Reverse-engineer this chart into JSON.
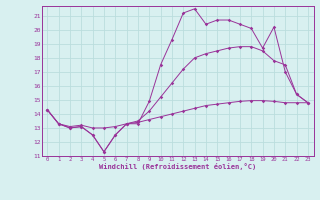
{
  "xlabel": "Windchill (Refroidissement éolien,°C)",
  "bg_color": "#d8f0f0",
  "line_color": "#993399",
  "grid_color": "#bbdddd",
  "xlim": [
    -0.5,
    23.5
  ],
  "ylim": [
    11,
    21.7
  ],
  "xticks": [
    0,
    1,
    2,
    3,
    4,
    5,
    6,
    7,
    8,
    9,
    10,
    11,
    12,
    13,
    14,
    15,
    16,
    17,
    18,
    19,
    20,
    21,
    22,
    23
  ],
  "yticks": [
    11,
    12,
    13,
    14,
    15,
    16,
    17,
    18,
    19,
    20,
    21
  ],
  "line1_x": [
    0,
    1,
    2,
    3,
    4,
    5,
    6,
    7,
    8,
    9,
    10,
    11,
    12,
    13,
    14,
    15,
    16,
    17,
    18,
    19,
    20,
    21,
    22,
    23
  ],
  "line1_y": [
    14.3,
    13.3,
    13.0,
    13.1,
    12.5,
    11.3,
    12.5,
    13.3,
    13.3,
    14.9,
    17.5,
    19.3,
    21.2,
    21.5,
    20.4,
    20.7,
    20.7,
    20.4,
    20.1,
    18.7,
    20.2,
    17.0,
    15.4,
    14.8
  ],
  "line2_x": [
    0,
    1,
    2,
    3,
    4,
    5,
    6,
    7,
    8,
    9,
    10,
    11,
    12,
    13,
    14,
    15,
    16,
    17,
    18,
    19,
    20,
    21,
    22,
    23
  ],
  "line2_y": [
    14.3,
    13.3,
    13.0,
    13.1,
    12.5,
    11.3,
    12.5,
    13.3,
    13.5,
    14.2,
    15.2,
    16.2,
    17.2,
    18.0,
    18.3,
    18.5,
    18.7,
    18.8,
    18.8,
    18.5,
    17.8,
    17.5,
    15.4,
    14.8
  ],
  "line3_x": [
    0,
    1,
    2,
    3,
    4,
    5,
    6,
    7,
    8,
    9,
    10,
    11,
    12,
    13,
    14,
    15,
    16,
    17,
    18,
    19,
    20,
    21,
    22,
    23
  ],
  "line3_y": [
    14.3,
    13.3,
    13.1,
    13.2,
    13.0,
    13.0,
    13.1,
    13.3,
    13.4,
    13.6,
    13.8,
    14.0,
    14.2,
    14.4,
    14.6,
    14.7,
    14.8,
    14.9,
    14.95,
    14.95,
    14.9,
    14.8,
    14.8,
    14.8
  ]
}
